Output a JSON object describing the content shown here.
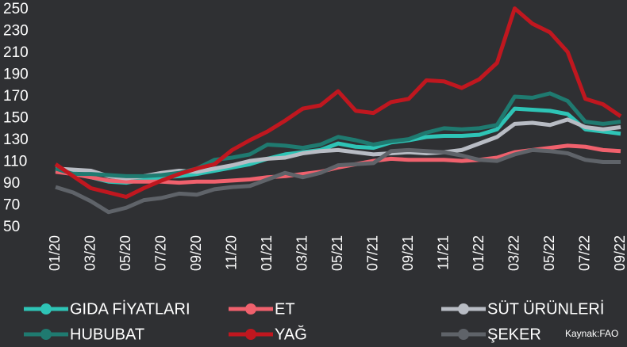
{
  "chart_data": {
    "type": "line",
    "categories": [
      "01/20",
      null,
      "03/20",
      null,
      "05/20",
      null,
      "07/20",
      null,
      "09/20",
      null,
      "11/20",
      null,
      "01/21",
      null,
      "03/21",
      null,
      "05/21",
      null,
      "07/21",
      null,
      "09/21",
      null,
      "11/21",
      null,
      "01/22",
      null,
      "03/22",
      null,
      "05/22",
      null,
      "07/22",
      null,
      "09/22"
    ],
    "ylim": [
      50,
      250
    ],
    "yticks": [
      50,
      70,
      90,
      110,
      130,
      150,
      170,
      190,
      210,
      230,
      250
    ],
    "annotation": "Kaynak:FAO",
    "series": [
      {
        "name": "GIDA FİYATLARI",
        "color": "#2ec4b6",
        "values": [
          102,
          100,
          96,
          92,
          91,
          94,
          96,
          97,
          99,
          102,
          105,
          108,
          113,
          117,
          119,
          121,
          127,
          124,
          123,
          128,
          130,
          133,
          134,
          134,
          135,
          140,
          159,
          158,
          157,
          154,
          140,
          138,
          136
        ]
      },
      {
        "name": "ET",
        "color": "#f0616d",
        "values": [
          101,
          99,
          96,
          93,
          92,
          92,
          92,
          91,
          92,
          92,
          93,
          94,
          96,
          97,
          99,
          101,
          105,
          108,
          111,
          113,
          112,
          112,
          112,
          111,
          112,
          114,
          119,
          121,
          123,
          125,
          124,
          121,
          120
        ]
      },
      {
        "name": "SÜT ÜRÜNLERİ",
        "color": "#b8bcc4",
        "values": [
          104,
          103,
          102,
          97,
          95,
          97,
          100,
          102,
          101,
          104,
          107,
          111,
          113,
          114,
          118,
          120,
          121,
          119,
          117,
          118,
          119,
          118,
          119,
          121,
          127,
          133,
          145,
          146,
          144,
          149,
          142,
          140,
          142
        ]
      },
      {
        "name": "HUBUBAT",
        "color": "#1f7a70",
        "values": [
          104,
          99,
          99,
          98,
          97,
          97,
          98,
          100,
          104,
          112,
          114,
          117,
          126,
          125,
          123,
          126,
          133,
          130,
          126,
          129,
          131,
          137,
          141,
          140,
          141,
          144,
          170,
          169,
          173,
          166,
          147,
          145,
          147
        ]
      },
      {
        "name": "YAĞ",
        "color": "#c0171f",
        "values": [
          108,
          97,
          86,
          82,
          78,
          86,
          93,
          99,
          104,
          108,
          121,
          130,
          138,
          148,
          159,
          162,
          175,
          157,
          155,
          165,
          168,
          185,
          184,
          178,
          186,
          201,
          251,
          237,
          229,
          211,
          168,
          163,
          152
        ]
      },
      {
        "name": "ŞEKER",
        "color": "#5f6369",
        "values": [
          87,
          82,
          74,
          64,
          68,
          75,
          77,
          81,
          80,
          85,
          87,
          88,
          94,
          100,
          96,
          100,
          107,
          108,
          109,
          120,
          121,
          120,
          119,
          116,
          112,
          111,
          117,
          121,
          120,
          118,
          112,
          110,
          110
        ]
      }
    ]
  }
}
